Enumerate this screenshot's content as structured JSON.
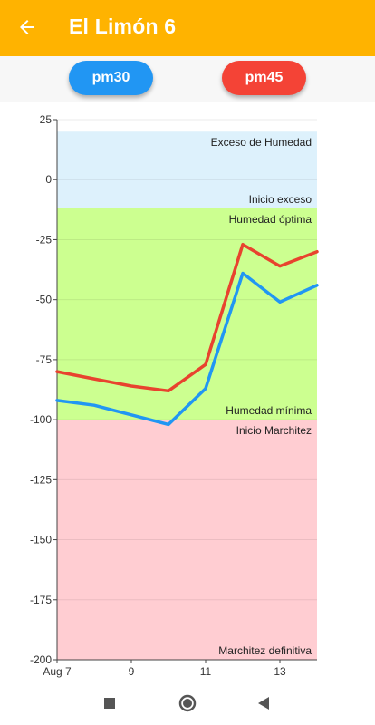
{
  "app_bar": {
    "title": "El Limón 6",
    "back_icon": "arrow-back-icon",
    "color": "#FFB300"
  },
  "toggles": [
    {
      "label": "pm30",
      "color": "#2196F3"
    },
    {
      "label": "pm45",
      "color": "#F44336"
    }
  ],
  "nav_bar": {
    "icons": [
      "recent-apps-icon",
      "home-icon",
      "back-icon"
    ]
  },
  "chart_data": {
    "type": "line",
    "ylim": [
      -200,
      25
    ],
    "xlim": [
      7,
      14
    ],
    "y_ticks": [
      25,
      0,
      -25,
      -50,
      -75,
      -100,
      -125,
      -150,
      -175,
      -200
    ],
    "x_ticks": [
      {
        "value": 7,
        "label": "Aug 7"
      },
      {
        "value": 9,
        "label": "9"
      },
      {
        "value": 11,
        "label": "11"
      },
      {
        "value": 13,
        "label": "13"
      }
    ],
    "grid": true,
    "zones": [
      {
        "from": -12,
        "to": 20,
        "color": "#DDF1FC",
        "top_label": "Exceso de Humedad",
        "bottom_label": "Inicio exceso"
      },
      {
        "from": -100,
        "to": -12,
        "color": "#CCFF90",
        "top_label": "Humedad óptima",
        "bottom_label": "Humedad mínima"
      },
      {
        "from": -200,
        "to": -100,
        "color": "#FFCDD2",
        "top_label": "Inicio Marchitez",
        "bottom_label": "Marchitez definitiva"
      }
    ],
    "series": [
      {
        "name": "pm45",
        "color": "#E8432E",
        "x": [
          7,
          8,
          9,
          10,
          11,
          12,
          13,
          14
        ],
        "y": [
          -80,
          -83,
          -86,
          -88,
          -77,
          -27,
          -36,
          -30
        ]
      },
      {
        "name": "pm30",
        "color": "#2196F3",
        "x": [
          7,
          8,
          9,
          10,
          11,
          12,
          13,
          14
        ],
        "y": [
          -92,
          -94,
          -98,
          -102,
          -87,
          -39,
          -51,
          -44
        ]
      }
    ]
  }
}
